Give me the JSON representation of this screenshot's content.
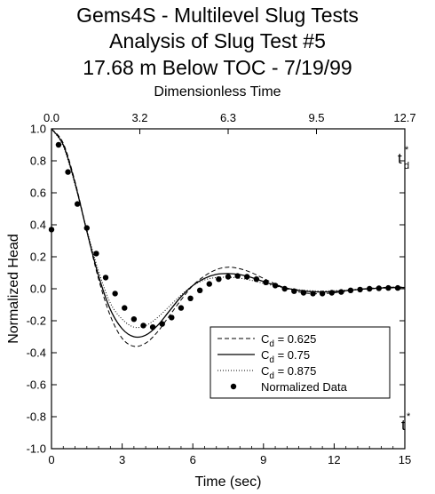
{
  "header": {
    "title_line1": "Gems4S - Multilevel Slug Tests",
    "title_line2": "Analysis of Slug Test #5",
    "title_line3": "17.68 m Below TOC - 7/19/99"
  },
  "chart_data": {
    "type": "line",
    "title": "Gems4S - Multilevel Slug Tests Analysis of Slug Test #5 17.68 m Below TOC - 7/19/99",
    "xlabel": "Time (sec)",
    "ylabel": "Normalized Head",
    "top_xlabel": "Dimensionless Time",
    "xlim": [
      0,
      15
    ],
    "ylim": [
      -1.0,
      1.0
    ],
    "x_ticks": [
      0,
      3,
      6,
      9,
      12,
      15
    ],
    "y_ticks": [
      -1.0,
      -0.8,
      -0.6,
      -0.4,
      -0.2,
      0.0,
      0.2,
      0.4,
      0.6,
      0.8,
      1.0
    ],
    "y_tick_labels": [
      "-1.0",
      "-0.8",
      "-0.6",
      "-0.4",
      "-0.2",
      "0.0",
      "0.2",
      "0.4",
      "0.6",
      "0.8",
      "1.0"
    ],
    "top_x_tick_labels": [
      "0.0",
      "3.2",
      "6.3",
      "9.5",
      "12.7"
    ],
    "top_x_tick_values": [
      0,
      3.75,
      7.5,
      11.25,
      15
    ],
    "top_axis_marker": "t",
    "top_axis_marker_sub": "d",
    "bottom_axis_marker": "t",
    "marker_superscript": "*",
    "grid": false,
    "legend_position": "lower-right",
    "series": [
      {
        "name": "C_d = 0.625",
        "legend_main": "C",
        "legend_sub": "d",
        "legend_value": " = 0.625",
        "style": "dashed",
        "x": [
          0,
          0.5,
          1,
          1.5,
          2,
          2.5,
          3,
          3.5,
          4,
          4.5,
          5,
          5.5,
          6,
          6.5,
          7,
          7.5,
          8,
          8.5,
          9,
          9.5,
          10,
          10.5,
          11,
          11.5,
          12,
          12.5,
          13,
          13.5,
          14,
          14.5,
          15
        ],
        "y": [
          1.0,
          0.91,
          0.67,
          0.36,
          0.06,
          -0.17,
          -0.31,
          -0.36,
          -0.34,
          -0.27,
          -0.17,
          -0.07,
          0.02,
          0.08,
          0.12,
          0.135,
          0.125,
          0.1,
          0.065,
          0.03,
          0.0,
          -0.02,
          -0.03,
          -0.03,
          -0.025,
          -0.015,
          -0.005,
          0.003,
          0.008,
          0.01,
          0.01
        ]
      },
      {
        "name": "C_d = 0.75",
        "legend_main": "C",
        "legend_sub": "d",
        "legend_value": " = 0.75",
        "style": "solid",
        "x": [
          0,
          0.5,
          1,
          1.5,
          2,
          2.5,
          3,
          3.5,
          4,
          4.5,
          5,
          5.5,
          6,
          6.5,
          7,
          7.5,
          8,
          8.5,
          9,
          9.5,
          10,
          10.5,
          11,
          11.5,
          12,
          12.5,
          13,
          13.5,
          14,
          14.5,
          15
        ],
        "y": [
          1.0,
          0.9,
          0.66,
          0.36,
          0.08,
          -0.13,
          -0.25,
          -0.3,
          -0.29,
          -0.23,
          -0.14,
          -0.05,
          0.02,
          0.065,
          0.09,
          0.095,
          0.088,
          0.07,
          0.045,
          0.022,
          0.003,
          -0.01,
          -0.018,
          -0.02,
          -0.018,
          -0.012,
          -0.005,
          0.0,
          0.005,
          0.007,
          0.008
        ]
      },
      {
        "name": "C_d = 0.875",
        "legend_main": "C",
        "legend_sub": "d",
        "legend_value": " = 0.875",
        "style": "dotted",
        "x": [
          0,
          0.5,
          1,
          1.5,
          2,
          2.5,
          3,
          3.5,
          4,
          4.5,
          5,
          5.5,
          6,
          6.5,
          7,
          7.5,
          8,
          8.5,
          9,
          9.5,
          10,
          10.5,
          11,
          11.5,
          12,
          12.5,
          13,
          13.5,
          14,
          14.5,
          15
        ],
        "y": [
          1.0,
          0.89,
          0.65,
          0.37,
          0.11,
          -0.09,
          -0.19,
          -0.24,
          -0.23,
          -0.18,
          -0.11,
          -0.04,
          0.02,
          0.055,
          0.07,
          0.072,
          0.066,
          0.052,
          0.034,
          0.017,
          0.003,
          -0.006,
          -0.012,
          -0.014,
          -0.012,
          -0.008,
          -0.003,
          0.0,
          0.003,
          0.005,
          0.006
        ]
      },
      {
        "name": "Normalized Data",
        "legend_main": "Normalized Data",
        "style": "markers",
        "x": [
          0.0,
          0.3,
          0.7,
          1.1,
          1.5,
          1.9,
          2.3,
          2.7,
          3.1,
          3.5,
          3.9,
          4.3,
          4.7,
          5.1,
          5.5,
          5.9,
          6.3,
          6.7,
          7.1,
          7.5,
          7.9,
          8.3,
          8.7,
          9.1,
          9.5,
          9.9,
          10.3,
          10.7,
          11.1,
          11.5,
          11.9,
          12.3,
          12.7,
          13.1,
          13.5,
          13.9,
          14.3,
          14.7
        ],
        "y": [
          0.37,
          0.9,
          0.73,
          0.53,
          0.38,
          0.22,
          0.07,
          -0.03,
          -0.12,
          -0.19,
          -0.23,
          -0.24,
          -0.22,
          -0.18,
          -0.12,
          -0.06,
          -0.01,
          0.03,
          0.06,
          0.075,
          0.08,
          0.075,
          0.06,
          0.04,
          0.02,
          0.0,
          -0.015,
          -0.025,
          -0.03,
          -0.03,
          -0.025,
          -0.02,
          -0.01,
          -0.005,
          0.0,
          0.003,
          0.005,
          0.005
        ]
      }
    ]
  }
}
